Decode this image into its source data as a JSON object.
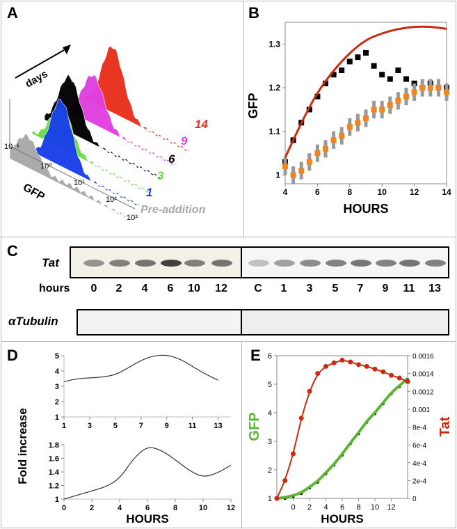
{
  "panels": {
    "A": "A",
    "B": "B",
    "C": "C",
    "D": "D",
    "E": "E"
  },
  "panel_a": {
    "days_label": "days",
    "gfp_label": "GFP",
    "x_ticks": [
      "10⁻¹",
      "10⁰",
      "10¹",
      "10²",
      "10³"
    ],
    "series": [
      {
        "name": "14",
        "color": "#e8301c"
      },
      {
        "name": "9",
        "color": "#e040e0"
      },
      {
        "name": "6",
        "color": "#000000"
      },
      {
        "name": "3",
        "color": "#66dd44"
      },
      {
        "name": "1",
        "color": "#1a3fe8"
      },
      {
        "name": "Pre-addition",
        "color": "#a8a8a8"
      }
    ]
  },
  "panel_c": {
    "tat_label": "Tat",
    "hours_label": "hours",
    "tubulin_label": "αTubulin",
    "lanes_left": [
      "0",
      "2",
      "4",
      "6",
      "10",
      "12"
    ],
    "lanes_right": [
      "C",
      "1",
      "3",
      "5",
      "7",
      "9",
      "11",
      "13"
    ]
  },
  "chart_data": [
    {
      "panel": "B",
      "type": "line",
      "xlabel": "HOURS",
      "ylabel": "GFP",
      "xlim": [
        4,
        14
      ],
      "ylim": [
        0.98,
        1.35
      ],
      "x_ticks": [
        "4",
        "6",
        "8",
        "10",
        "12",
        "14"
      ],
      "y_ticks": [
        "1",
        "1.1",
        "1.2",
        "1.3"
      ],
      "series": [
        {
          "color": "#000000",
          "x": [
            4,
            4.5,
            5,
            5.5,
            6,
            6.5,
            7,
            7.5,
            8,
            8.5,
            9,
            9.5,
            10,
            10.5,
            11,
            11.5,
            12,
            12.5,
            13,
            13.5,
            14
          ],
          "y": [
            1.03,
            1.08,
            1.12,
            1.15,
            1.18,
            1.21,
            1.23,
            1.24,
            1.26,
            1.27,
            1.28,
            1.25,
            1.23,
            1.22,
            1.24,
            1.22,
            1.21,
            1.2,
            1.21,
            1.2,
            1.2
          ]
        },
        {
          "color": "#f08420",
          "x": [
            4,
            4.5,
            5,
            5.5,
            6,
            6.5,
            7,
            7.5,
            8,
            8.5,
            9,
            9.5,
            10,
            10.5,
            11,
            11.5,
            12,
            12.5,
            13,
            13.5,
            14
          ],
          "y": [
            1.02,
            1.0,
            1.01,
            1.03,
            1.05,
            1.06,
            1.08,
            1.09,
            1.11,
            1.12,
            1.13,
            1.15,
            1.15,
            1.16,
            1.17,
            1.18,
            1.19,
            1.2,
            1.2,
            1.2,
            1.19
          ]
        },
        {
          "color": "#cc2a10",
          "x": [
            4,
            5,
            6,
            7,
            8,
            9,
            10,
            11,
            12,
            13,
            14
          ],
          "y": [
            1.04,
            1.12,
            1.19,
            1.24,
            1.28,
            1.31,
            1.325,
            1.335,
            1.34,
            1.34,
            1.335
          ]
        }
      ]
    },
    {
      "panel": "D-top",
      "type": "line",
      "ylabel": "Fold increase",
      "xlim": [
        1,
        14
      ],
      "ylim": [
        1,
        5
      ],
      "x_ticks": [
        "1",
        "3",
        "5",
        "7",
        "9",
        "11",
        "13"
      ],
      "y_ticks": [
        "1",
        "2",
        "3",
        "4",
        "5"
      ],
      "series": [
        {
          "color": "#333333",
          "x": [
            1,
            2,
            3,
            4,
            5,
            6,
            7,
            8,
            9,
            10,
            11,
            12,
            13
          ],
          "y": [
            3.3,
            3.5,
            3.55,
            3.6,
            3.75,
            4.2,
            4.7,
            5.0,
            5.05,
            4.8,
            4.3,
            3.8,
            3.4
          ]
        }
      ]
    },
    {
      "panel": "D-bottom",
      "type": "line",
      "xlabel": "HOURS",
      "xlim": [
        0,
        12
      ],
      "ylim": [
        1,
        1.8
      ],
      "x_ticks": [
        "0",
        "2",
        "4",
        "6",
        "8",
        "10",
        "12"
      ],
      "y_ticks": [
        "1",
        "1.2",
        "1.4",
        "1.6",
        "1.8"
      ],
      "series": [
        {
          "color": "#333333",
          "x": [
            0,
            1,
            2,
            3,
            4,
            5,
            6,
            7,
            8,
            9,
            10,
            11,
            12
          ],
          "y": [
            1.0,
            1.06,
            1.12,
            1.18,
            1.3,
            1.6,
            1.78,
            1.72,
            1.58,
            1.42,
            1.32,
            1.38,
            1.5
          ]
        }
      ]
    },
    {
      "panel": "E",
      "type": "line",
      "xlabel": "HOURS",
      "ylabel": "GFP",
      "ylabel_right": "Tat",
      "xlim": [
        -2,
        14
      ],
      "ylim": [
        1,
        6
      ],
      "ylim_right": [
        0,
        0.0016
      ],
      "x_ticks": [
        "0",
        "2",
        "4",
        "6",
        "8",
        "10",
        "12"
      ],
      "y_ticks": [
        "1",
        "2",
        "3",
        "4",
        "5",
        "6"
      ],
      "y_ticks_right": [
        "0",
        "2e-4",
        "4e-4",
        "6e-4",
        "8e-4",
        "0.001",
        "0.0012",
        "0.0014",
        "0.0016"
      ],
      "series": [
        {
          "color": "#5ab535",
          "x": [
            -2,
            -1,
            0,
            1,
            2,
            3,
            4,
            5,
            6,
            7,
            8,
            9,
            10,
            11,
            12,
            13,
            14
          ],
          "y": [
            1,
            1.03,
            1.1,
            1.2,
            1.4,
            1.6,
            1.9,
            2.2,
            2.55,
            2.95,
            3.3,
            3.7,
            4.0,
            4.35,
            4.7,
            4.95,
            5.2
          ]
        },
        {
          "color": "#cc2a10",
          "axis": "right",
          "x": [
            -2,
            -1,
            0,
            1,
            2,
            3,
            4,
            5,
            6,
            7,
            8,
            9,
            10,
            11,
            12,
            13,
            14
          ],
          "y": [
            0,
            0.0002,
            0.0005,
            0.0009,
            0.0012,
            0.0014,
            0.00148,
            0.00152,
            0.00155,
            0.00153,
            0.0015,
            0.00148,
            0.00145,
            0.00142,
            0.00138,
            0.00135,
            0.00131
          ]
        }
      ]
    }
  ]
}
